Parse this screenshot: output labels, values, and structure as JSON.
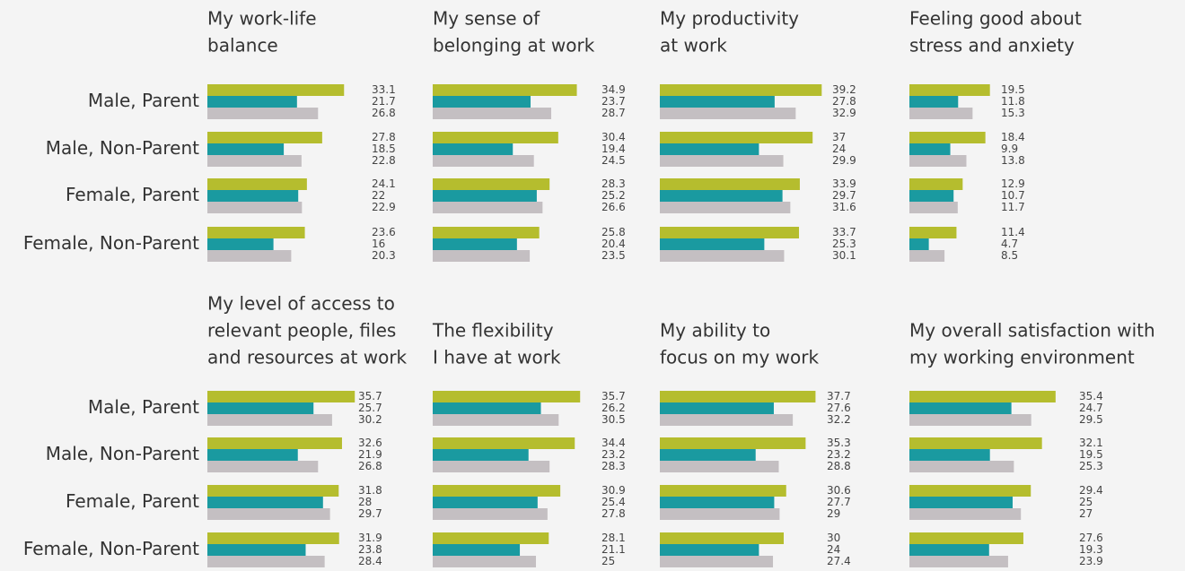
{
  "chart_data": [
    {
      "type": "bar",
      "title": [
        "My work-life",
        "balance"
      ],
      "categories": [
        "Male, Parent",
        "Male, Non-Parent",
        "Female, Parent",
        "Female, Non-Parent"
      ],
      "series": [
        {
          "color": "#b5bd2e",
          "values": [
            33.1,
            27.8,
            24.1,
            23.6
          ]
        },
        {
          "color": "#1a9aa0",
          "values": [
            21.7,
            18.5,
            22,
            16
          ]
        },
        {
          "color": "#c4bfc2",
          "values": [
            26.8,
            22.8,
            22.9,
            20.3
          ]
        }
      ]
    },
    {
      "type": "bar",
      "title": [
        "My sense of",
        "belonging at work"
      ],
      "series": [
        {
          "color": "#b5bd2e",
          "values": [
            34.9,
            30.4,
            28.3,
            25.8
          ]
        },
        {
          "color": "#1a9aa0",
          "values": [
            23.7,
            19.4,
            25.2,
            20.4
          ]
        },
        {
          "color": "#c4bfc2",
          "values": [
            28.7,
            24.5,
            26.6,
            23.5
          ]
        }
      ]
    },
    {
      "type": "bar",
      "title": [
        "My productivity",
        "at work"
      ],
      "series": [
        {
          "color": "#b5bd2e",
          "values": [
            39.2,
            37,
            33.9,
            33.7
          ]
        },
        {
          "color": "#1a9aa0",
          "values": [
            27.8,
            24,
            29.7,
            25.3
          ]
        },
        {
          "color": "#c4bfc2",
          "values": [
            32.9,
            29.9,
            31.6,
            30.1
          ]
        }
      ]
    },
    {
      "type": "bar",
      "title": [
        "Feeling good about",
        "stress and anxiety"
      ],
      "series": [
        {
          "color": "#b5bd2e",
          "values": [
            19.5,
            18.4,
            12.9,
            11.4
          ]
        },
        {
          "color": "#1a9aa0",
          "values": [
            11.8,
            9.9,
            10.7,
            4.7
          ]
        },
        {
          "color": "#c4bfc2",
          "values": [
            15.3,
            13.8,
            11.7,
            8.5
          ]
        }
      ]
    },
    {
      "type": "bar",
      "title": [
        "My level of access to",
        "relevant people, files",
        "and resources at work"
      ],
      "categories": [
        "Male, Parent",
        "Male, Non-Parent",
        "Female, Parent",
        "Female, Non-Parent"
      ],
      "series": [
        {
          "color": "#b5bd2e",
          "values": [
            35.7,
            32.6,
            31.8,
            31.9
          ]
        },
        {
          "color": "#1a9aa0",
          "values": [
            25.7,
            21.9,
            28,
            23.8
          ]
        },
        {
          "color": "#c4bfc2",
          "values": [
            30.2,
            26.8,
            29.7,
            28.4
          ]
        }
      ]
    },
    {
      "type": "bar",
      "title": [
        "The flexibility",
        "I have at work"
      ],
      "series": [
        {
          "color": "#b5bd2e",
          "values": [
            35.7,
            34.4,
            30.9,
            28.1
          ]
        },
        {
          "color": "#1a9aa0",
          "values": [
            26.2,
            23.2,
            25.4,
            21.1
          ]
        },
        {
          "color": "#c4bfc2",
          "values": [
            30.5,
            28.3,
            27.8,
            25
          ]
        }
      ]
    },
    {
      "type": "bar",
      "title": [
        "My ability to",
        "focus on my work"
      ],
      "series": [
        {
          "color": "#b5bd2e",
          "values": [
            37.7,
            35.3,
            30.6,
            30
          ]
        },
        {
          "color": "#1a9aa0",
          "values": [
            27.6,
            23.2,
            27.7,
            24
          ]
        },
        {
          "color": "#c4bfc2",
          "values": [
            32.2,
            28.8,
            29,
            27.4
          ]
        }
      ]
    },
    {
      "type": "bar",
      "title": [
        "My overall satisfaction with",
        "my working environment"
      ],
      "series": [
        {
          "color": "#b5bd2e",
          "values": [
            35.4,
            32.1,
            29.4,
            27.6
          ]
        },
        {
          "color": "#1a9aa0",
          "values": [
            24.7,
            19.5,
            25,
            19.3
          ]
        },
        {
          "color": "#c4bfc2",
          "values": [
            29.5,
            25.3,
            27,
            23.9
          ]
        }
      ]
    }
  ]
}
